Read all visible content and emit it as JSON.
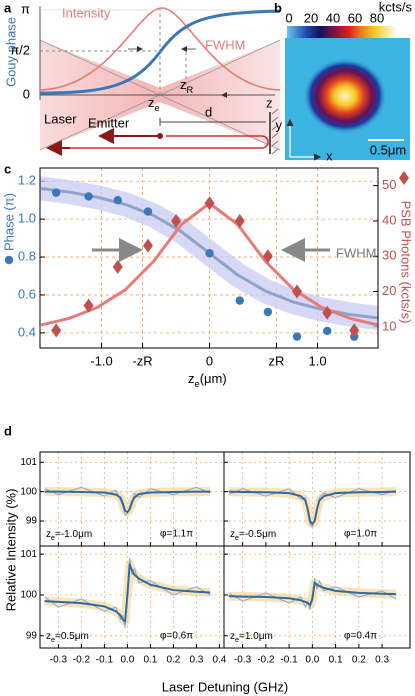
{
  "panel_a": {
    "label": "a",
    "ylabel": "Gouy phase",
    "yticks": [
      "π",
      "π/2",
      "0"
    ],
    "intensity": "Intensity",
    "fwhm": "FWHM",
    "ze": {
      "main": "z",
      "sub": "e"
    },
    "zr": {
      "main": "z",
      "sub": "R"
    },
    "z": "z",
    "laser": "Laser",
    "emitter": "Emitter",
    "d": "d"
  },
  "panel_b": {
    "label": "b",
    "unit": "kcts/s",
    "colorbar_lim": [
      0,
      100
    ],
    "colorbar_ticks": [
      0,
      20,
      40,
      60,
      80
    ],
    "y": "y",
    "x": "x",
    "scalebar": "0.5μm"
  },
  "panel_c": {
    "label": "c"
  },
  "panel_d": {
    "label": "d",
    "ylabel": "Relative Intensity (%)",
    "xlabel": "Laser Detuning (GHz)"
  },
  "chart_data": [
    {
      "type": "scatter",
      "xlabel": {
        "main": "z",
        "sub": "e",
        "rest": "(μm)"
      },
      "ylabel": "Phase (π)",
      "y2label": "PSB Photons (kcts/s)",
      "annotation": "FWHM",
      "xlim": [
        -1.57,
        1.56
      ],
      "xticks": [
        {
          "value": -1,
          "label": "-1.0"
        },
        {
          "value": -0.62,
          "label": "-zR"
        },
        0,
        {
          "value": 0.62,
          "label": "zR"
        },
        {
          "value": 1,
          "label": "1.0"
        }
      ],
      "ylim": [
        0.32,
        1.27
      ],
      "yticks": [
        0.4,
        0.6,
        0.8,
        {
          "value": 1,
          "label": "1.0"
        },
        1.2
      ],
      "y2lim": [
        4,
        55
      ],
      "y2ticks": [
        10,
        20,
        30,
        40,
        50
      ],
      "grid": true,
      "grid_color": "#f2a25c",
      "x": [
        -1.42,
        -1.12,
        -0.85,
        -0.57,
        -0.31,
        0,
        0.28,
        0.54,
        0.81,
        1.09,
        1.34
      ],
      "series": [
        {
          "color": "#3a78b8",
          "marker": "circle",
          "values": [
            1.14,
            1.12,
            1.1,
            1.04,
            0.99,
            0.82,
            0.57,
            0.51,
            0.38,
            0.41,
            0.38
          ]
        },
        {
          "color": "#c0504d",
          "marker": "diamond",
          "axis": "y2",
          "values": [
            9,
            16,
            27,
            33,
            40,
            45,
            40,
            30,
            20,
            14,
            9
          ]
        }
      ],
      "fits": [
        {
          "color": "#8fa3c8",
          "band_color": "#c9cbf2",
          "x": [
            -1.56,
            -1.3,
            -1.04,
            -0.78,
            -0.52,
            -0.26,
            0,
            0.26,
            0.52,
            0.78,
            1.04,
            1.3,
            1.56
          ],
          "values": [
            1.162,
            1.143,
            1.116,
            1.078,
            1.02,
            0.934,
            0.82,
            0.706,
            0.62,
            0.562,
            0.524,
            0.497,
            0.478
          ]
        },
        {
          "color": "#e87a7a",
          "axis": "y2",
          "x": [
            -1.56,
            -1.3,
            -1.04,
            -0.78,
            -0.52,
            -0.26,
            0,
            0.26,
            0.52,
            0.78,
            1.04,
            1.3,
            1.56
          ],
          "values": [
            10.5,
            12.4,
            15.5,
            20.5,
            28.5,
            39,
            45,
            39,
            28.5,
            20.5,
            15.5,
            12.4,
            10.5
          ]
        }
      ]
    },
    {
      "type": "line",
      "ze_label": {
        "main": "z",
        "sub": "e",
        "rest": "=-1.0μm"
      },
      "phi_label": "φ=1.1π",
      "xlim": [
        -0.38,
        0.42
      ],
      "xticks": [
        -0.3,
        -0.2,
        -0.1,
        {
          "value": 0,
          "label": "0.0"
        },
        0.1,
        0.2,
        0.3
      ],
      "ylim": [
        98.15,
        101.35
      ],
      "yticks": [
        99,
        100,
        101
      ],
      "show_xtick_labels": false,
      "show_ytick_labels": true,
      "grid": true,
      "grid_color": "#f2a25c",
      "band_color": "#f5d08a",
      "x": [
        -0.36,
        -0.3,
        -0.2,
        -0.1,
        -0.05,
        -0.03,
        -0.02,
        -0.01,
        0,
        0.01,
        0.02,
        0.03,
        0.05,
        0.1,
        0.2,
        0.3,
        0.36
      ],
      "series": [
        {
          "color": "#86a9d8",
          "values": [
            100.1,
            99.9,
            100.15,
            99.85,
            100.05,
            99.7,
            99.5,
            99.2,
            99.25,
            99.5,
            99.55,
            99.95,
            99.8,
            100.1,
            99.9,
            100.15,
            99.95
          ]
        },
        {
          "color": "#2f6aa3",
          "values": [
            100.0,
            100.0,
            99.99,
            99.97,
            99.9,
            99.8,
            99.6,
            99.35,
            99.3,
            99.4,
            99.65,
            99.8,
            99.92,
            99.97,
            99.99,
            100.0,
            100.0
          ]
        }
      ]
    },
    {
      "type": "line",
      "ze_label": {
        "main": "z",
        "sub": "e",
        "rest": "=-0.5μm"
      },
      "phi_label": "φ=1.0π",
      "xlim": [
        -0.38,
        0.42
      ],
      "xticks": [
        -0.3,
        -0.2,
        -0.1,
        {
          "value": 0,
          "label": "0.0"
        },
        0.1,
        0.2,
        0.3
      ],
      "ylim": [
        98.15,
        101.35
      ],
      "yticks": [
        99,
        100,
        101
      ],
      "show_xtick_labels": false,
      "show_ytick_labels": false,
      "grid": true,
      "grid_color": "#f2a25c",
      "band_color": "#f5d08a",
      "x": [
        -0.36,
        -0.3,
        -0.2,
        -0.1,
        -0.05,
        -0.03,
        -0.02,
        -0.01,
        0,
        0.01,
        0.02,
        0.03,
        0.05,
        0.1,
        0.2,
        0.3,
        0.36
      ],
      "series": [
        {
          "color": "#86a9d8",
          "values": [
            99.9,
            100.1,
            99.85,
            100.1,
            99.75,
            99.8,
            99.3,
            98.9,
            98.8,
            99.1,
            99.3,
            99.8,
            99.95,
            99.8,
            100.1,
            99.9,
            100.05
          ]
        },
        {
          "color": "#2f6aa3",
          "values": [
            100.0,
            99.99,
            99.98,
            99.95,
            99.85,
            99.7,
            99.4,
            99.0,
            98.9,
            99.0,
            99.4,
            99.7,
            99.85,
            99.95,
            99.98,
            99.99,
            100.0
          ]
        }
      ]
    },
    {
      "type": "line",
      "ze_label": {
        "main": "z",
        "sub": "e",
        "rest": "=0.5μm"
      },
      "phi_label": "φ=0.6π",
      "xlim": [
        -0.38,
        0.42
      ],
      "xticks": [
        -0.3,
        -0.2,
        -0.1,
        {
          "value": 0,
          "label": "0.0"
        },
        0.1,
        0.2,
        0.3,
        0.4
      ],
      "ylim": [
        98.7,
        101.2
      ],
      "yticks": [
        99,
        100,
        101
      ],
      "show_xtick_labels": true,
      "show_ytick_labels": true,
      "grid": true,
      "grid_color": "#f2a25c",
      "band_color": "#f5d08a",
      "x": [
        -0.36,
        -0.3,
        -0.2,
        -0.1,
        -0.05,
        -0.03,
        -0.02,
        -0.01,
        0,
        0.01,
        0.02,
        0.03,
        0.05,
        0.1,
        0.2,
        0.3,
        0.36
      ],
      "series": [
        {
          "color": "#86a9d8",
          "values": [
            99.95,
            99.7,
            99.9,
            99.6,
            99.7,
            99.4,
            99.5,
            99.2,
            100.1,
            100.9,
            100.5,
            100.65,
            100.3,
            100.35,
            100.0,
            100.2,
            100.0
          ]
        },
        {
          "color": "#2f6aa3",
          "values": [
            99.85,
            99.83,
            99.8,
            99.72,
            99.6,
            99.5,
            99.4,
            99.35,
            100.0,
            100.75,
            100.6,
            100.5,
            100.4,
            100.25,
            100.12,
            100.08,
            100.06
          ]
        }
      ]
    },
    {
      "type": "line",
      "ze_label": {
        "main": "z",
        "sub": "e",
        "rest": "=1.0μm"
      },
      "phi_label": "φ=0.4π",
      "xlim": [
        -0.38,
        0.42
      ],
      "xticks": [
        -0.3,
        -0.2,
        -0.1,
        {
          "value": 0,
          "label": "0.0"
        },
        0.1,
        0.2,
        0.3
      ],
      "ylim": [
        98.7,
        101.2
      ],
      "yticks": [
        99,
        100,
        101
      ],
      "show_xtick_labels": true,
      "show_ytick_labels": false,
      "grid": true,
      "grid_color": "#f2a25c",
      "band_color": "#f5d08a",
      "x": [
        -0.36,
        -0.3,
        -0.2,
        -0.1,
        -0.05,
        -0.03,
        -0.02,
        -0.01,
        0,
        0.01,
        0.02,
        0.03,
        0.05,
        0.1,
        0.2,
        0.3,
        0.36
      ],
      "series": [
        {
          "color": "#86a9d8",
          "values": [
            100.05,
            99.85,
            100.05,
            99.8,
            99.95,
            99.7,
            99.85,
            99.65,
            100.0,
            100.4,
            100.15,
            100.35,
            100.1,
            100.2,
            99.95,
            100.1,
            99.9
          ]
        },
        {
          "color": "#2f6aa3",
          "values": [
            99.97,
            99.96,
            99.95,
            99.92,
            99.87,
            99.83,
            99.8,
            99.75,
            99.9,
            100.3,
            100.25,
            100.22,
            100.17,
            100.1,
            100.05,
            100.03,
            100.02
          ]
        }
      ]
    }
  ]
}
